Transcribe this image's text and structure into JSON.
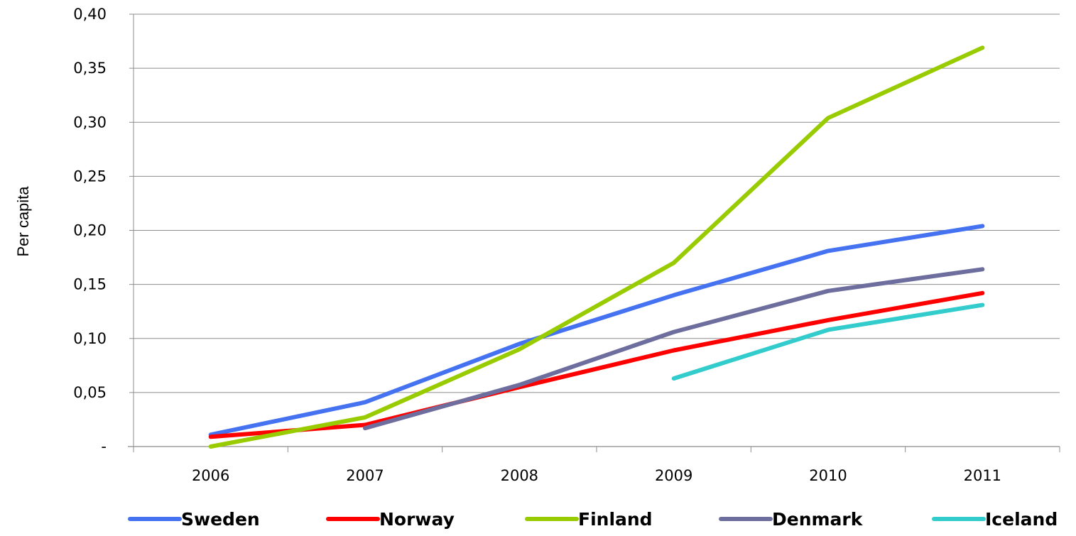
{
  "chart_data": {
    "type": "line",
    "categories": [
      "2006",
      "2007",
      "2008",
      "2009",
      "2010",
      "2011"
    ],
    "ylabel": "Per capita",
    "xlabel": "",
    "ylim": [
      0,
      0.4
    ],
    "y_ticks": [
      0,
      0.05,
      0.1,
      0.15,
      0.2,
      0.25,
      0.3,
      0.35,
      0.4
    ],
    "y_tick_labels": [
      "-",
      "0,05",
      "0,10",
      "0,15",
      "0,20",
      "0,25",
      "0,30",
      "0,35",
      "0,40"
    ],
    "grid": true,
    "legend_position": "bottom",
    "series": [
      {
        "name": "Sweden",
        "color": "#4472F0",
        "values": [
          0.011,
          0.041,
          0.095,
          0.14,
          0.181,
          0.204
        ]
      },
      {
        "name": "Norway",
        "color": "#FF0000",
        "values": [
          0.009,
          0.02,
          0.055,
          0.089,
          0.117,
          0.142
        ]
      },
      {
        "name": "Finland",
        "color": "#99CC00",
        "values": [
          0.0,
          0.027,
          0.09,
          0.17,
          0.304,
          0.369
        ]
      },
      {
        "name": "Denmark",
        "color": "#6E6E9E",
        "values": [
          null,
          0.017,
          0.057,
          0.106,
          0.144,
          0.164
        ]
      },
      {
        "name": "Iceland",
        "color": "#33CCCC",
        "values": [
          null,
          null,
          null,
          0.063,
          0.108,
          0.131
        ]
      }
    ]
  }
}
